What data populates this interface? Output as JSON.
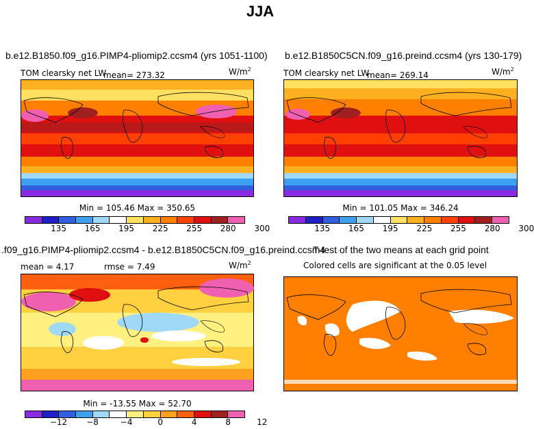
{
  "page_title": "JJA",
  "panels": {
    "top_left": {
      "case_title": "b.e12.B1850.f09_g16.PIMP4-pliomip2.ccsm4 (yrs 1051-1100)",
      "variable": "TOM clearsky net LW",
      "mean": "mean= 273.32",
      "units": "W/m",
      "units_exp": "2",
      "minmax": "Min = 105.46 Max = 350.65"
    },
    "top_right": {
      "case_title": "b.e12.B1850C5CN.f09_g16.preind.ccsm4 (yrs 130-179)",
      "variable": "TOM clearsky net LW",
      "mean": "mean= 269.14",
      "units": "W/m",
      "units_exp": "2",
      "minmax": "Min = 101.05 Max = 346.24"
    },
    "bottom_left": {
      "case_title": ".f09_g16.PIMP4-pliomip2.ccsm4 - b.e12.B1850C5CN.f09_g16.preind.ccsm4",
      "mean": "mean =    4.17",
      "rmse": "rmse =    7.49",
      "units": "W/m",
      "units_exp": "2",
      "minmax": "Min = -13.55 Max = 52.70"
    },
    "bottom_right": {
      "title": "T-test of the two means at each grid point",
      "subtitle": "Colored cells are significant at the 0.05 level"
    }
  },
  "colors": {
    "abs_scale": [
      "#8a2be2",
      "#2020c8",
      "#3060e0",
      "#40a0f0",
      "#a0d8f8",
      "#ffffff",
      "#ffe060",
      "#ffb020",
      "#ff8000",
      "#ff4000",
      "#e01010",
      "#a02020",
      "#f060b0"
    ],
    "diff_scale": [
      "#8a2be2",
      "#2020c8",
      "#3060e0",
      "#40a0f0",
      "#a0d8f8",
      "#ffffff",
      "#fff080",
      "#ffd040",
      "#ffa020",
      "#ff6010",
      "#e01010",
      "#a02020",
      "#f060b0"
    ],
    "significance": "#ff7f00"
  },
  "chart_data": [
    {
      "type": "heatmap",
      "title": "b.e12.B1850.f09_g16.PIMP4-pliomip2.ccsm4 (yrs 1051-1100)",
      "variable": "TOM clearsky net LW",
      "mean": 273.32,
      "min": 105.46,
      "max": 350.65,
      "units": "W/m2",
      "colorbar_ticks": [
        135,
        165,
        195,
        225,
        255,
        280,
        300
      ]
    },
    {
      "type": "heatmap",
      "title": "b.e12.B1850C5CN.f09_g16.preind.ccsm4 (yrs 130-179)",
      "variable": "TOM clearsky net LW",
      "mean": 269.14,
      "min": 101.05,
      "max": 346.24,
      "units": "W/m2",
      "colorbar_ticks": [
        135,
        165,
        195,
        225,
        255,
        280,
        300
      ]
    },
    {
      "type": "heatmap",
      "title": ".f09_g16.PIMP4-pliomip2.ccsm4 - b.e12.B1850C5CN.f09_g16.preind.ccsm4",
      "mean": 4.17,
      "rmse": 7.49,
      "min": -13.55,
      "max": 52.7,
      "units": "W/m2",
      "colorbar_ticks": [
        -12,
        -8,
        -4,
        0,
        4,
        8,
        12
      ]
    },
    {
      "type": "heatmap",
      "title": "T-test of the two means at each grid point",
      "subtitle": "Colored cells are significant at the 0.05 level"
    }
  ]
}
